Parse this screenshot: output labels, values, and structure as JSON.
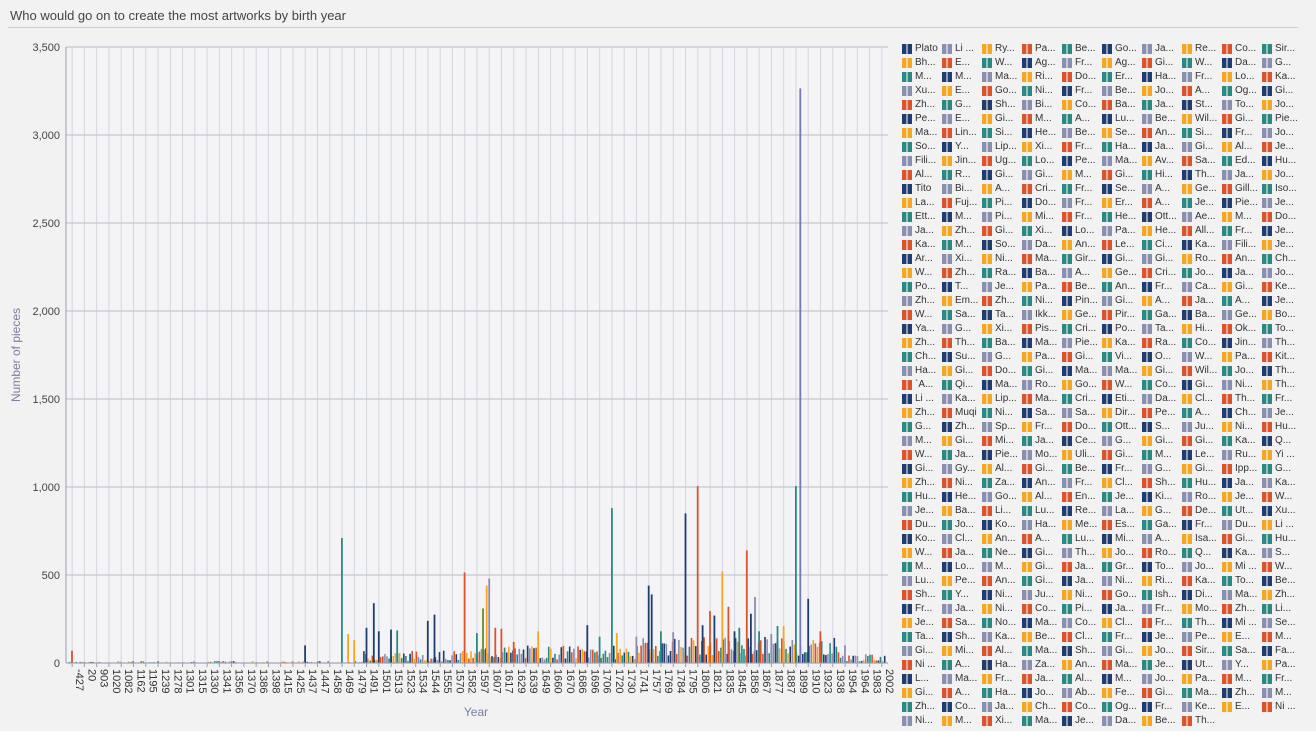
{
  "title": "Who would go on to create the most artworks by birth year",
  "chart_data": {
    "type": "bar",
    "title": "Who would go on to create the most artworks by birth year",
    "xlabel": "Year",
    "ylabel": "Number of pieces",
    "ylim": [
      0,
      3500
    ],
    "yticks": [
      0,
      500,
      1000,
      1500,
      2000,
      2500,
      3000,
      3500
    ],
    "ytick_labels": [
      "0",
      "500",
      "1,000",
      "1,500",
      "2,000",
      "2,500",
      "3,000",
      "3,500"
    ],
    "xtick_labels": [
      "-427",
      "20",
      "903",
      "1020",
      "1082",
      "1162",
      "1195",
      "1239",
      "1278",
      "1301",
      "1315",
      "1330",
      "1341",
      "1356",
      "1370",
      "1386",
      "1398",
      "1415",
      "1425",
      "1437",
      "1447",
      "1458",
      "1469",
      "1479",
      "1491",
      "1501",
      "1513",
      "1523",
      "1534",
      "1544",
      "1555",
      "1570",
      "1582",
      "1597",
      "1607",
      "1617",
      "1629",
      "1639",
      "1649",
      "1660",
      "1670",
      "1686",
      "1696",
      "1706",
      "1720",
      "1730",
      "1741",
      "1757",
      "1769",
      "1784",
      "1795",
      "1806",
      "1821",
      "1835",
      "1845",
      "1858",
      "1867",
      "1877",
      "1887",
      "1899",
      "1910",
      "1923",
      "1938",
      "1954",
      "1964",
      "1983",
      "2002"
    ],
    "grid": true,
    "legend_position": "right",
    "palette": [
      "#1f3d6e",
      "#f5a623",
      "#2a8a82",
      "#8a8fb0",
      "#d9532b"
    ],
    "peaks": [
      {
        "x": "-427",
        "value": 70,
        "color": "#d9532b"
      },
      {
        "x": "1437",
        "value": 100,
        "color": "#1f3d6e"
      },
      {
        "x": "1469",
        "value": 710,
        "color": "#2a8a82"
      },
      {
        "x": "1474",
        "value": 165,
        "color": "#f5a623"
      },
      {
        "x": "1479",
        "value": 130,
        "color": "#f5a623"
      },
      {
        "x": "1491",
        "value": 200,
        "color": "#1f3d6e"
      },
      {
        "x": "1497",
        "value": 340,
        "color": "#1f3d6e"
      },
      {
        "x": "1501",
        "value": 180,
        "color": "#1f3d6e"
      },
      {
        "x": "1513",
        "value": 190,
        "color": "#1f3d6e"
      },
      {
        "x": "1518",
        "value": 185,
        "color": "#2a8a82"
      },
      {
        "x": "1544",
        "value": 240,
        "color": "#1f3d6e"
      },
      {
        "x": "1550",
        "value": 275,
        "color": "#1f3d6e"
      },
      {
        "x": "1582",
        "value": 515,
        "color": "#d9532b"
      },
      {
        "x": "1597",
        "value": 170,
        "color": "#2a8a82"
      },
      {
        "x": "1602",
        "value": 310,
        "color": "#6b8a2a"
      },
      {
        "x": "1605",
        "value": 440,
        "color": "#f5a623"
      },
      {
        "x": "1607",
        "value": 480,
        "color": "#8a8fb0"
      },
      {
        "x": "1612",
        "value": 200,
        "color": "#d9532b"
      },
      {
        "x": "1617",
        "value": 195,
        "color": "#d9532b"
      },
      {
        "x": "1629",
        "value": 120,
        "color": "#d9532b"
      },
      {
        "x": "1649",
        "value": 180,
        "color": "#f5a623"
      },
      {
        "x": "1696",
        "value": 215,
        "color": "#1f3d6e"
      },
      {
        "x": "1706",
        "value": 150,
        "color": "#2a8a82"
      },
      {
        "x": "1720",
        "value": 880,
        "color": "#2a8a82"
      },
      {
        "x": "1724",
        "value": 170,
        "color": "#f5a623"
      },
      {
        "x": "1741",
        "value": 150,
        "color": "#8a8fb0"
      },
      {
        "x": "1757",
        "value": 440,
        "color": "#1f3d6e"
      },
      {
        "x": "1760",
        "value": 390,
        "color": "#1f3d6e"
      },
      {
        "x": "1769",
        "value": 180,
        "color": "#2a8a82"
      },
      {
        "x": "1784",
        "value": 175,
        "color": "#8a8fb0"
      },
      {
        "x": "1795",
        "value": 850,
        "color": "#1f3d6e"
      },
      {
        "x": "1806",
        "value": 1005,
        "color": "#d9532b"
      },
      {
        "x": "1812",
        "value": 215,
        "color": "#1f3d6e"
      },
      {
        "x": "1821",
        "value": 295,
        "color": "#d9532b"
      },
      {
        "x": "1826",
        "value": 270,
        "color": "#1f3d6e"
      },
      {
        "x": "1835",
        "value": 520,
        "color": "#f5a623"
      },
      {
        "x": "1840",
        "value": 320,
        "color": "#d9532b"
      },
      {
        "x": "1845",
        "value": 180,
        "color": "#1f3d6e"
      },
      {
        "x": "1850",
        "value": 200,
        "color": "#2a8a82"
      },
      {
        "x": "1858",
        "value": 640,
        "color": "#d9532b"
      },
      {
        "x": "1861",
        "value": 280,
        "color": "#1f3d6e"
      },
      {
        "x": "1864",
        "value": 375,
        "color": "#8a8fb0"
      },
      {
        "x": "1867",
        "value": 180,
        "color": "#2a8a82"
      },
      {
        "x": "1877",
        "value": 165,
        "color": "#8a8fb0"
      },
      {
        "x": "1882",
        "value": 210,
        "color": "#2a8a82"
      },
      {
        "x": "1887",
        "value": 210,
        "color": "#f5a623"
      },
      {
        "x": "1899",
        "value": 1005,
        "color": "#2a8a82"
      },
      {
        "x": "1903",
        "value": 3265,
        "color": "#7377b5"
      },
      {
        "x": "1910",
        "value": 365,
        "color": "#1f3d6e"
      },
      {
        "x": "1923",
        "value": 180,
        "color": "#d9532b"
      },
      {
        "x": "1954",
        "value": 100,
        "color": "#8a8fb0"
      }
    ]
  },
  "legend_names": [
    "Plato",
    "Li ...",
    "Ry...",
    "Pa...",
    "Be...",
    "Go...",
    "Ja...",
    "Re...",
    "Co...",
    "Sir...",
    "Bh...",
    "E...",
    "W...",
    "Ag...",
    "Fr...",
    "Ag...",
    "Gi...",
    "W...",
    "Da...",
    "G...",
    "M...",
    "M...",
    "Ma...",
    "Ri...",
    "Do...",
    "Er...",
    "Ha...",
    "Fr...",
    "Lo...",
    "Ka...",
    "Xu...",
    "E...",
    "Go...",
    "Ni...",
    "Fr...",
    "Be...",
    "Jo...",
    "A...",
    "Og...",
    "Gi...",
    "Zh...",
    "G...",
    "Sh...",
    "Bi...",
    "Co...",
    "Ba...",
    "Ja...",
    "St...",
    "To...",
    "Jo...",
    "Pe...",
    "E...",
    "Gi...",
    "M...",
    "A...",
    "Lu...",
    "Be...",
    "Wil...",
    "Gi...",
    "Pie...",
    "Ma...",
    "Lin...",
    "Si...",
    "He...",
    "Be...",
    "Se...",
    "An...",
    "Si...",
    "Fr...",
    "Jo...",
    "So...",
    "Y...",
    "Lip...",
    "Xi...",
    "Fr...",
    "Ha...",
    "Ja...",
    "Gi...",
    "Al...",
    "Je...",
    "Fili...",
    "Jin...",
    "Ug...",
    "Lo...",
    "Pe...",
    "Ma...",
    "Av...",
    "Sa...",
    "Ed...",
    "Hu...",
    "Al...",
    "R...",
    "Gi...",
    "Gi...",
    "M...",
    "Gi...",
    "Hi...",
    "Th...",
    "Ja...",
    "Jo...",
    "Tito",
    "Bi...",
    "A...",
    "Cri...",
    "Fr...",
    "Se...",
    "A...",
    "Ge...",
    "Gill...",
    "Iso...",
    "La...",
    "Fuj...",
    "Pi...",
    "Do...",
    "Fr...",
    "Er...",
    "A...",
    "Je...",
    "Pie...",
    "Je...",
    "Ett...",
    "M...",
    "Pi...",
    "Mi...",
    "Fr...",
    "He...",
    "Ott...",
    "Ae...",
    "M...",
    "Do...",
    "Ja...",
    "Zh...",
    "Gi...",
    "Xi...",
    "Lo...",
    "Pa...",
    "He...",
    "All...",
    "Fr...",
    "Je...",
    "Ka...",
    "M...",
    "So...",
    "Da...",
    "An...",
    "Le...",
    "Ci...",
    "Ka...",
    "Fili...",
    "Je...",
    "Ar...",
    "Xi...",
    "Ni...",
    "Ma...",
    "Gir...",
    "Gi...",
    "Gi...",
    "Ro...",
    "An...",
    "Ch...",
    "W...",
    "Zh...",
    "Ra...",
    "Ba...",
    "A...",
    "Ge...",
    "Cri...",
    "Jo...",
    "Ja...",
    "Jo...",
    "Po...",
    "T...",
    "Je...",
    "Pa...",
    "Be...",
    "An...",
    "Fr...",
    "Ca...",
    "Gi...",
    "Ke...",
    "Zh...",
    "Em...",
    "Zh...",
    "Ni...",
    "Pin...",
    "Gi...",
    "A...",
    "Ja...",
    "A...",
    "Je...",
    "W...",
    "Sa...",
    "Ta...",
    "Ikk...",
    "Ge...",
    "Pir...",
    "Ga...",
    "Ba...",
    "Ge...",
    "Bo...",
    "Ya...",
    "G...",
    "Xi...",
    "Pis...",
    "Cri...",
    "Po...",
    "Ta...",
    "Hi...",
    "Ok...",
    "To...",
    "Zh...",
    "Th...",
    "Ba...",
    "Ma...",
    "Pie...",
    "Ka...",
    "Ra...",
    "Co...",
    "Jin...",
    "Th...",
    "Ch...",
    "Su...",
    "G...",
    "Pa...",
    "Gi...",
    "Vi...",
    "O...",
    "W...",
    "Pa...",
    "Kit...",
    "Ha...",
    "Gi...",
    "Do...",
    "Gi...",
    "Ma...",
    "Ma...",
    "Gi...",
    "Wil...",
    "Jo...",
    "Th...",
    "`A...",
    "Qi...",
    "Ma...",
    "Ro...",
    "Go...",
    "W...",
    "Co...",
    "Gi...",
    "Ni...",
    "Th...",
    "Li ...",
    "Ka...",
    "Lip...",
    "Ma...",
    "Cri...",
    "Eti...",
    "Da...",
    "Cl...",
    "Th...",
    "Fr...",
    "Zh...",
    "Muqi",
    "Ni...",
    "Sa...",
    "Sa...",
    "Dir...",
    "Pe...",
    "A...",
    "Ch...",
    "Je...",
    "G...",
    "Zh...",
    "Sp...",
    "Fr...",
    "Do...",
    "Ott...",
    "S...",
    "Ju...",
    "Ni...",
    "Hu...",
    "M...",
    "Gi...",
    "Mi...",
    "Ja...",
    "Ce...",
    "G...",
    "Gi...",
    "Gi...",
    "Ka...",
    "Q...",
    "W...",
    "Ja...",
    "Pie...",
    "Mo...",
    "Uli...",
    "Gi...",
    "M...",
    "Le...",
    "Ru...",
    "Yi ...",
    "Gi...",
    "Gy...",
    "Al...",
    "Gi...",
    "Be...",
    "Fr...",
    "G...",
    "Gi...",
    "Ipp...",
    "G...",
    "Zh...",
    "Ni...",
    "Za...",
    "An...",
    "Fr...",
    "Cl...",
    "Sh...",
    "Hu...",
    "Ja...",
    "Ka...",
    "Hu...",
    "He...",
    "Go...",
    "Al...",
    "En...",
    "Je...",
    "Ki...",
    "Ro...",
    "Je...",
    "W...",
    "Je...",
    "Ba...",
    "Li...",
    "Lu...",
    "Re...",
    "La...",
    "G...",
    "De...",
    "Ut...",
    "Xu...",
    "Du...",
    "Jo...",
    "Ko...",
    "Ha...",
    "Me...",
    "Es...",
    "Ga...",
    "Fr...",
    "Du...",
    "Li ...",
    "Ko...",
    "Cl...",
    "An...",
    "A...",
    "Lu...",
    "Mi...",
    "A...",
    "Isa...",
    "Gi...",
    "Hu...",
    "W...",
    "Ja...",
    "Ne...",
    "Gi...",
    "Th...",
    "Jo...",
    "Ro...",
    "Q...",
    "Ka...",
    "S...",
    "M...",
    "Lo...",
    "M...",
    "Gi...",
    "Ja...",
    "Gr...",
    "To...",
    "Jo...",
    "Mi ...",
    "W...",
    "Lu...",
    "Pe...",
    "An...",
    "Gi...",
    "Ja...",
    "Ni...",
    "Ri...",
    "Ka...",
    "To...",
    "Be...",
    "Sh...",
    "Y...",
    "Ni...",
    "Ju...",
    "Ni...",
    "Go...",
    "Ish...",
    "Di...",
    "Ma...",
    "Zh...",
    "Fr...",
    "Ja...",
    "Ni...",
    "Co...",
    "Pi...",
    "Ja...",
    "Fr...",
    "Mo...",
    "Zh...",
    "Li...",
    "Je...",
    "Sa...",
    "No...",
    "Ma...",
    "Co...",
    "Cl...",
    "Fr...",
    "Th...",
    "Mi ...",
    "Se...",
    "Ta...",
    "Sh...",
    "Ka...",
    "Be...",
    "Cl...",
    "Fr...",
    "Je...",
    "Pe...",
    "E...",
    "M...",
    "Gi...",
    "Mi...",
    "Al...",
    "Ma...",
    "Sh...",
    "Gi...",
    "Jo...",
    "Sir...",
    "Sa...",
    "Fa...",
    "Ni ...",
    "A...",
    "Ha...",
    "Za...",
    "An...",
    "Ma...",
    "Je...",
    "Ut...",
    "Y...",
    "Pa...",
    "L...",
    "Ma...",
    "Fr...",
    "Ja...",
    "Al...",
    "M...",
    "Jo...",
    "Pa...",
    "M...",
    "Fr...",
    "Gi...",
    "A...",
    "Ha...",
    "Jo...",
    "Ab...",
    "Fe...",
    "Gi...",
    "Ma...",
    "Zh...",
    "M...",
    "Zh...",
    "Co...",
    "Ja...",
    "Ch...",
    "Co...",
    "Og...",
    "Fr...",
    "Ke...",
    "E...",
    "Ni ...",
    "Ni...",
    "M...",
    "Xi...",
    "Ma...",
    "Je...",
    "Da...",
    "Be...",
    "Th..."
  ],
  "legend_colors": [
    "#1f3d6e",
    "#f5a623",
    "#2a8a82",
    "#8a8fb0",
    "#d9532b"
  ]
}
